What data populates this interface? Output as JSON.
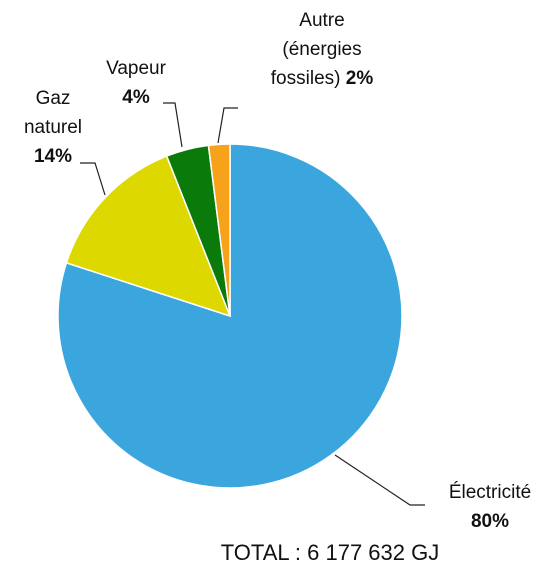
{
  "chart_data": {
    "type": "pie",
    "categories": [
      "Électricité",
      "Gaz naturel",
      "Vapeur",
      "Autre (énergies fossiles)"
    ],
    "values": [
      80,
      14,
      4,
      2
    ],
    "value_labels": [
      "80%",
      "14%",
      "4%",
      "2%"
    ],
    "colors": [
      "#3aa6dd",
      "#dcd800",
      "#0a7a0a",
      "#f7a21b"
    ],
    "annotation": "TOTAL : 6 177 632 GJ"
  }
}
